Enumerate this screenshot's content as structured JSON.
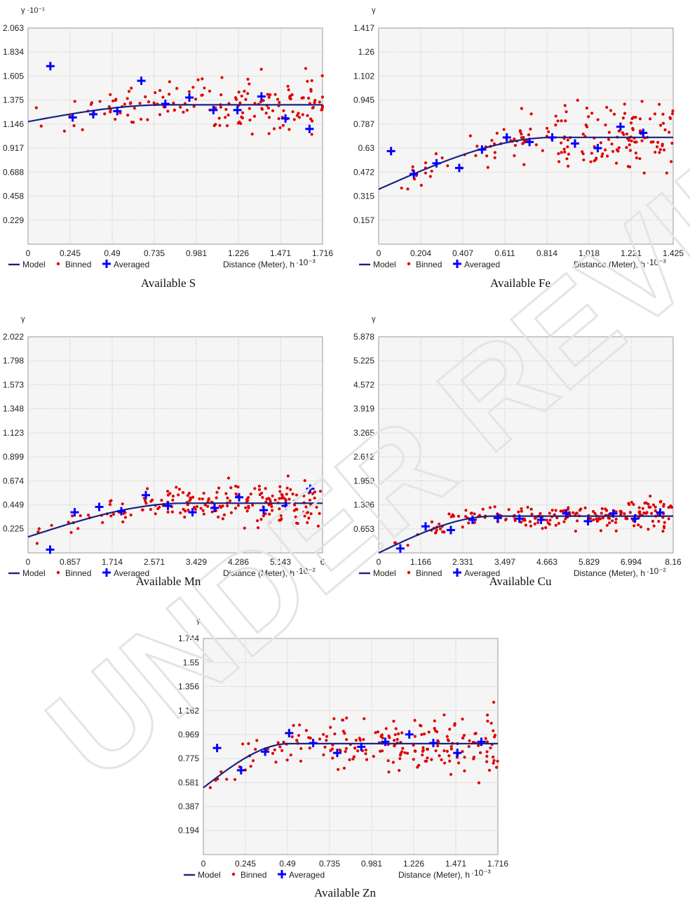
{
  "legend": {
    "model": "Model",
    "binned": "Binned",
    "averaged": "Averaged"
  },
  "watermark_text": "UNDER REVIEW",
  "colors": {
    "model": "#1a237e",
    "binned": "#e00000",
    "averaged": "#0000ff",
    "plot_bg": "#f5f5f5"
  },
  "chart_data": [
    {
      "type": "scatter",
      "title": "Available S",
      "ylabel": "γ",
      "yexp": "·10⁻¹",
      "xlabel": "Distance (Meter), h",
      "xexp": "·10⁻³",
      "xlim": [
        0,
        1.716
      ],
      "ylim": [
        0,
        2.063
      ],
      "xticks": [
        "0",
        "0.245",
        "0.49",
        "0.735",
        "0.981",
        "1.226",
        "1.471",
        "1.716"
      ],
      "yticks": [
        "0.229",
        "0.458",
        "0.688",
        "0.917",
        "1.146",
        "1.375",
        "1.605",
        "1.834",
        "2.063"
      ],
      "model": {
        "nugget": 1.17,
        "sill": 1.33,
        "range": 0.8
      },
      "averaged": [
        [
          0.13,
          1.7
        ],
        [
          0.26,
          1.21
        ],
        [
          0.38,
          1.24
        ],
        [
          0.52,
          1.27
        ],
        [
          0.66,
          1.56
        ],
        [
          0.8,
          1.34
        ],
        [
          0.94,
          1.4
        ],
        [
          1.08,
          1.28
        ],
        [
          1.22,
          1.28
        ],
        [
          1.36,
          1.41
        ],
        [
          1.5,
          1.2
        ],
        [
          1.64,
          1.1
        ]
      ],
      "binned_summary": {
        "center": 1.33,
        "spread": 0.32,
        "count": 170
      }
    },
    {
      "type": "scatter",
      "title": "Available Fe",
      "ylabel": "γ",
      "yexp": "",
      "xlabel": "Distance (Meter), h",
      "xexp": "·10⁻³",
      "xlim": [
        0,
        1.425
      ],
      "ylim": [
        0,
        1.417
      ],
      "xticks": [
        "0",
        "0.204",
        "0.407",
        "0.611",
        "0.814",
        "1.018",
        "1.221",
        "1.425"
      ],
      "yticks": [
        "0.157",
        "0.315",
        "0.472",
        "0.63",
        "0.787",
        "0.945",
        "1.102",
        "1.26",
        "1.417"
      ],
      "model": {
        "nugget": 0.36,
        "sill": 0.7,
        "range": 0.85
      },
      "averaged": [
        [
          0.06,
          0.61
        ],
        [
          0.17,
          0.46
        ],
        [
          0.28,
          0.53
        ],
        [
          0.39,
          0.5
        ],
        [
          0.5,
          0.62
        ],
        [
          0.62,
          0.7
        ],
        [
          0.73,
          0.67
        ],
        [
          0.84,
          0.7
        ],
        [
          0.95,
          0.66
        ],
        [
          1.06,
          0.63
        ],
        [
          1.17,
          0.77
        ],
        [
          1.28,
          0.73
        ]
      ],
      "binned_summary": {
        "center": 0.66,
        "spread": 0.24,
        "count": 180
      }
    },
    {
      "type": "scatter",
      "title": "Available Mn",
      "ylabel": "γ",
      "yexp": "",
      "xlabel": "Distance (Meter), h",
      "xexp": "·10⁻²",
      "xlim": [
        0,
        6
      ],
      "ylim": [
        0,
        2.022
      ],
      "xticks": [
        "0",
        "0.857",
        "1.714",
        "2.571",
        "3.429",
        "4.286",
        "5.143",
        "6"
      ],
      "yticks": [
        "0.225",
        "0.449",
        "0.674",
        "0.899",
        "1.123",
        "1.348",
        "1.573",
        "1.798",
        "2.022"
      ],
      "model": {
        "nugget": 0.15,
        "sill": 0.465,
        "range": 3.2
      },
      "averaged": [
        [
          0.45,
          0.03
        ],
        [
          0.95,
          0.38
        ],
        [
          1.45,
          0.43
        ],
        [
          1.9,
          0.39
        ],
        [
          2.4,
          0.54
        ],
        [
          2.85,
          0.44
        ],
        [
          3.35,
          0.38
        ],
        [
          3.8,
          0.42
        ],
        [
          4.3,
          0.52
        ],
        [
          4.8,
          0.4
        ],
        [
          5.25,
          0.44
        ],
        [
          5.75,
          0.6
        ]
      ],
      "binned_summary": {
        "center": 0.46,
        "spread": 0.22,
        "count": 200
      }
    },
    {
      "type": "scatter",
      "title": "Available Cu",
      "ylabel": "γ",
      "yexp": "",
      "xlabel": "Distance (Meter), h",
      "xexp": "·10⁻²",
      "xlim": [
        0,
        8.16
      ],
      "ylim": [
        0,
        5.878
      ],
      "xticks": [
        "0",
        "1.166",
        "2.331",
        "3.497",
        "4.663",
        "5.829",
        "6.994",
        "8.16"
      ],
      "yticks": [
        "0.653",
        "1.306",
        "1.959",
        "2.612",
        "3.265",
        "3.919",
        "4.572",
        "5.225",
        "5.878"
      ],
      "model": {
        "nugget": 0.0,
        "sill": 1.0,
        "range": 3.2
      },
      "averaged": [
        [
          0.6,
          0.12
        ],
        [
          1.3,
          0.72
        ],
        [
          2.0,
          0.62
        ],
        [
          2.6,
          0.9
        ],
        [
          3.3,
          0.95
        ],
        [
          3.9,
          0.93
        ],
        [
          4.5,
          0.9
        ],
        [
          5.2,
          1.07
        ],
        [
          5.8,
          0.86
        ],
        [
          6.5,
          1.07
        ],
        [
          7.1,
          0.93
        ],
        [
          7.8,
          1.1
        ]
      ],
      "binned_summary": {
        "center": 1.0,
        "spread": 0.42,
        "count": 210
      }
    },
    {
      "type": "scatter",
      "title": "Available Zn",
      "ylabel": "γ",
      "yexp": "",
      "xlabel": "Distance (Meter), h",
      "xexp": "·10⁻³",
      "xlim": [
        0,
        1.716
      ],
      "ylim": [
        0,
        1.744
      ],
      "xticks": [
        "0",
        "0.245",
        "0.49",
        "0.735",
        "0.981",
        "1.226",
        "1.471",
        "1.716"
      ],
      "yticks": [
        "0.194",
        "0.387",
        "0.581",
        "0.775",
        "0.969",
        "1.162",
        "1.356",
        "1.55",
        "1.744"
      ],
      "model": {
        "nugget": 0.54,
        "sill": 0.895,
        "range": 0.5
      },
      "averaged": [
        [
          0.08,
          0.86
        ],
        [
          0.22,
          0.68
        ],
        [
          0.36,
          0.83
        ],
        [
          0.5,
          0.98
        ],
        [
          0.64,
          0.9
        ],
        [
          0.78,
          0.82
        ],
        [
          0.92,
          0.87
        ],
        [
          1.06,
          0.91
        ],
        [
          1.2,
          0.97
        ],
        [
          1.34,
          0.9
        ],
        [
          1.48,
          0.82
        ],
        [
          1.62,
          0.91
        ]
      ],
      "binned_summary": {
        "center": 0.89,
        "spread": 0.28,
        "count": 210
      }
    }
  ]
}
